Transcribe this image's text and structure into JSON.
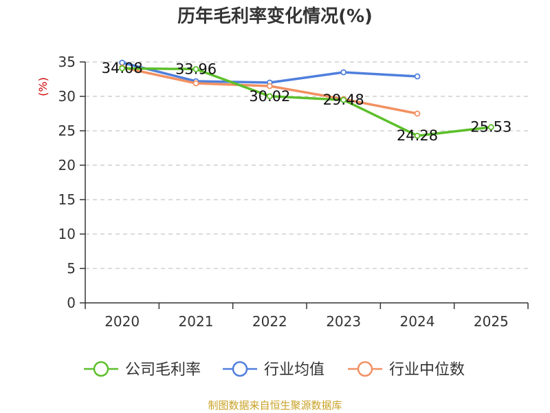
{
  "chart_data": {
    "type": "line",
    "title": "历年毛利率变化情况(%)",
    "ylabel": "(%)",
    "xlabel": "",
    "categories": [
      "2020",
      "2021",
      "2022",
      "2023",
      "2024",
      "2025"
    ],
    "ylim": [
      0,
      35
    ],
    "yticks": [
      0,
      5,
      10,
      15,
      20,
      25,
      30,
      35
    ],
    "grid": "horizontal dashed",
    "legend_position": "bottom",
    "series": [
      {
        "name": "公司毛利率",
        "color": "#5cbf2a",
        "values": [
          34.08,
          33.96,
          30.02,
          29.48,
          24.28,
          25.53
        ],
        "labels": [
          "34.08",
          "33.96",
          "30.02",
          "29.48",
          "24.28",
          "25.53"
        ]
      },
      {
        "name": "行业均值",
        "color": "#4f7fdc",
        "values": [
          34.9,
          32.2,
          32.0,
          33.5,
          32.9,
          null
        ]
      },
      {
        "name": "行业中位数",
        "color": "#f29061",
        "values": [
          34.2,
          31.9,
          31.5,
          29.6,
          27.5,
          null
        ]
      }
    ]
  },
  "footer": {
    "source": "制图数据来自恒生聚源数据库"
  }
}
